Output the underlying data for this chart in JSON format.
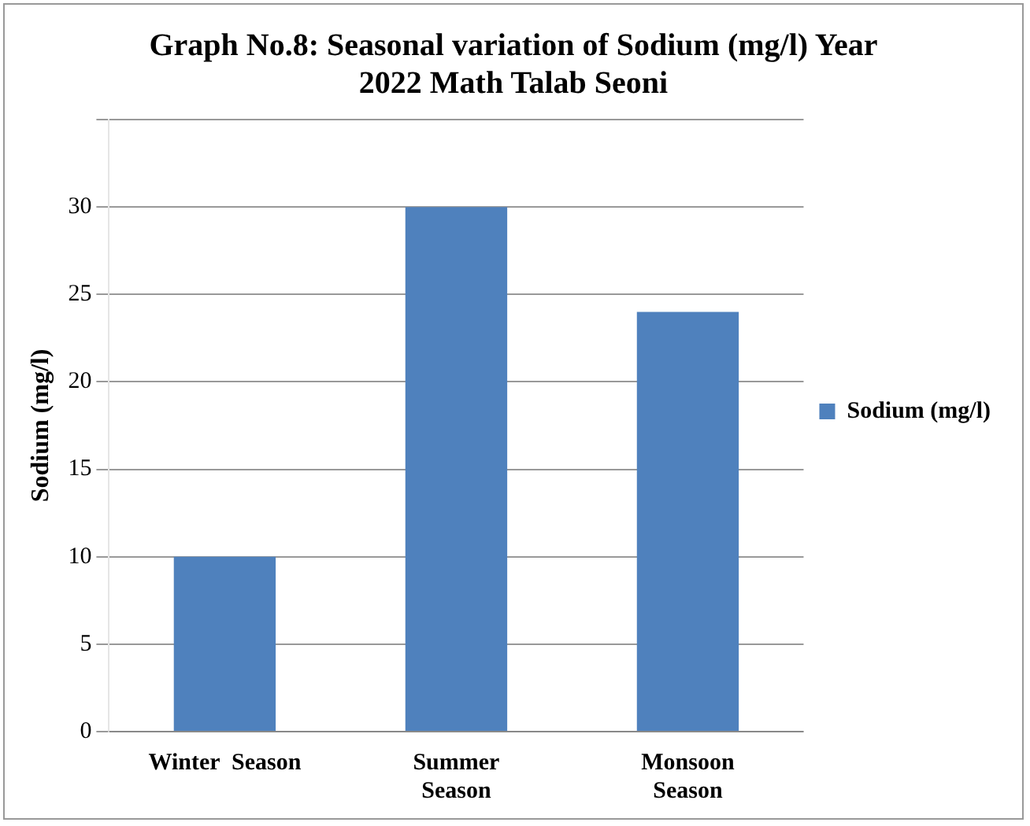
{
  "chart_data": {
    "type": "bar",
    "title": "Graph No.8: Seasonal variation of Sodium (mg/l) Year 2022 Math Talab Seoni",
    "ylabel": "Sodium (mg/l)",
    "categories": [
      "Winter  Season",
      "Summer Season",
      "Monsoon Season"
    ],
    "series": [
      {
        "name": "Sodium (mg/l)",
        "color": "#4f81bd",
        "values": [
          10,
          30,
          24
        ]
      }
    ],
    "ylim": [
      0,
      35
    ],
    "yticks": [
      0,
      5,
      10,
      15,
      20,
      25,
      30,
      {
        "value": 35,
        "label": null
      }
    ],
    "grid": "y",
    "legend": "right"
  }
}
